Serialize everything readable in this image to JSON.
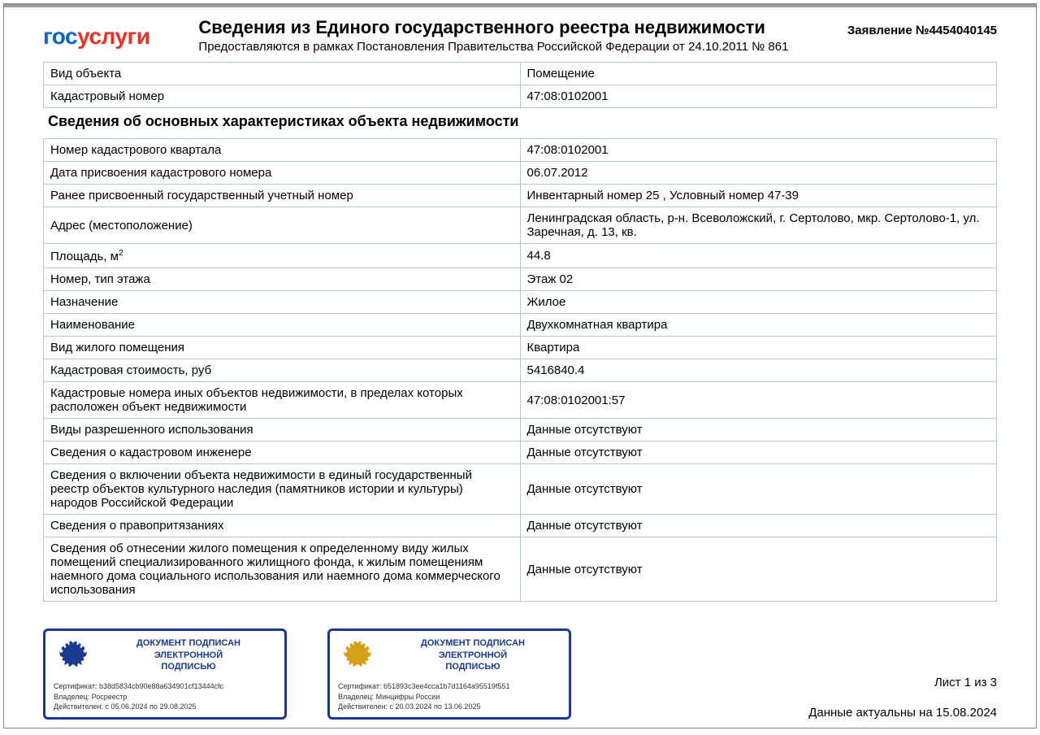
{
  "logo": {
    "p1": "гос",
    "p2": "услуги"
  },
  "header": {
    "title": "Сведения из Единого государственного реестра недвижимости",
    "subtitle": "Предоставляются в рамках Постановления Правительства Российской Федерации от 24.10.2011 № 861",
    "application": "Заявление №4454040145"
  },
  "table1": {
    "rows": [
      {
        "label": "Вид объекта",
        "value": "Помещение"
      },
      {
        "label": "Кадастровый номер",
        "value": "47:08:0102001"
      }
    ]
  },
  "section_title": "Сведения об основных характеристиках объекта недвижимости",
  "table2": {
    "rows": [
      {
        "label": "Номер кадастрового квартала",
        "value": "47:08:0102001"
      },
      {
        "label": "Дата присвоения кадастрового номера",
        "value": "06.07.2012"
      },
      {
        "label": "Ранее присвоенный государственный учетный номер",
        "value": "Инвентарный номер 25 , Условный номер 47-39"
      },
      {
        "label": "Адрес (местоположение)",
        "value": "Ленинградская область, р-н. Всеволожский, г. Сертолово, мкр. Сертолово-1, ул. Заречная, д. 13, кв."
      },
      {
        "label": "Площадь, м",
        "label_sup": "2",
        "value": "44.8"
      },
      {
        "label": "Номер, тип этажа",
        "value": "Этаж 02"
      },
      {
        "label": "Назначение",
        "value": "Жилое"
      },
      {
        "label": "Наименование",
        "value": "Двухкомнатная квартира"
      },
      {
        "label": "Вид жилого помещения",
        "value": "Квартира"
      },
      {
        "label": "Кадастровая стоимость, руб",
        "value": "5416840.4"
      },
      {
        "label": "Кадастровые номера иных объектов недвижимости, в пределах которых расположен объект недвижимости",
        "value": "47:08:0102001:57"
      },
      {
        "label": "Виды разрешенного использования",
        "value": "Данные отсутствуют"
      },
      {
        "label": "Сведения о кадастровом инженере",
        "value": "Данные отсутствуют"
      },
      {
        "label": "Сведения о включении объекта недвижимости в единый государственный реестр объектов культурного наследия (памятников истории и культуры) народов Российской Федерации",
        "value": "Данные отсутствуют"
      },
      {
        "label": "Сведения о правопритязаниях",
        "value": "Данные отсутствуют"
      },
      {
        "label": "Сведения об отнесении жилого помещения к определенному виду жилых помещений специализированного жилищного фонда, к жилым помещениям наемного дома социального использования или наемного дома коммерческого использования",
        "value": "Данные отсутствуют"
      }
    ]
  },
  "signatures": [
    {
      "title": "ДОКУМЕНТ ПОДПИСАН ЭЛЕКТРОННОЙ ПОДПИСЬЮ",
      "cert": "Сертификат: b38d5834cb90e88a634901cf13444cfc",
      "owner": "Владелец: Росреестр",
      "valid": "Действителен: с 05.06.2024 по 29.08.2025",
      "emblem_color": "blue"
    },
    {
      "title": "ДОКУМЕНТ ПОДПИСАН ЭЛЕКТРОННОЙ ПОДПИСЬЮ",
      "cert": "Сертификат: b51893c3ee4cca1b7d1164a95519f551",
      "owner": "Владелец: Минцифры России",
      "valid": "Действителен: с 20.03.2024 по 13.06.2025",
      "emblem_color": "gold"
    }
  ],
  "footer": {
    "page": "Лист 1 из  3",
    "date": "Данные актуальны на 15.08.2024"
  },
  "colors": {
    "border": "#b8c5d6",
    "sig_border": "#1a3a8f",
    "logo_blue": "#0066cc",
    "logo_red": "#ee3124"
  }
}
